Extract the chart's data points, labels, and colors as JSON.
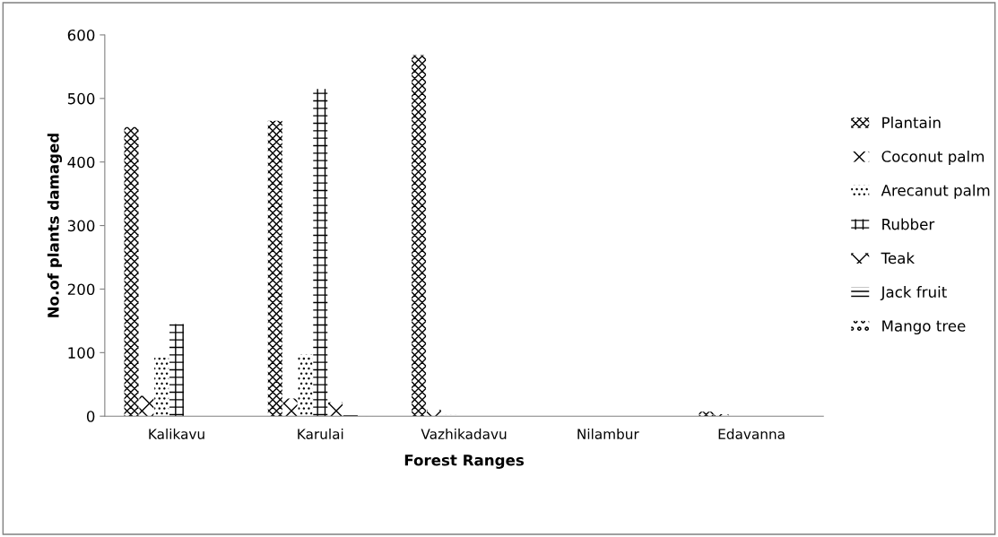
{
  "chart_data": {
    "type": "bar",
    "xlabel": "Forest Ranges",
    "ylabel": "No.of plants damaged",
    "categories": [
      "Kalikavu",
      "Karulai",
      "Vazhikadavu",
      "Nilambur",
      "Edavanna"
    ],
    "series": [
      {
        "name": "Plantain",
        "color": "#000000",
        "values": [
          455,
          465,
          568,
          0,
          7
        ]
      },
      {
        "name": "Coconut palm",
        "color": "#000000",
        "values": [
          32,
          28,
          10,
          0,
          3
        ]
      },
      {
        "name": "Arecanut palm",
        "color": "#000000",
        "values": [
          92,
          97,
          2,
          0,
          1
        ]
      },
      {
        "name": "Rubber",
        "color": "#000000",
        "values": [
          145,
          515,
          0,
          0,
          0
        ]
      },
      {
        "name": "Teak",
        "color": "#000000",
        "values": [
          0,
          22,
          0,
          0,
          0
        ]
      },
      {
        "name": "Jack fruit",
        "color": "#000000",
        "values": [
          0,
          3,
          0,
          0,
          0
        ]
      },
      {
        "name": "Mango tree",
        "color": "#000000",
        "values": [
          0,
          2,
          0,
          0,
          0
        ]
      }
    ],
    "ylim": [
      0,
      600
    ],
    "yticks": [
      0,
      100,
      200,
      300,
      400,
      500,
      600
    ],
    "grid": false,
    "legend": "right"
  }
}
